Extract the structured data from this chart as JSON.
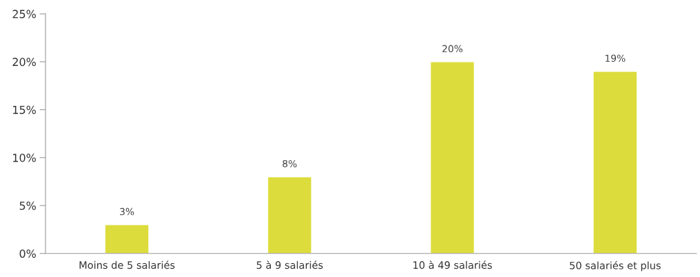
{
  "chart_data": {
    "type": "bar",
    "categories": [
      "Moins de 5 salariés",
      "5 à 9 salariés",
      "10 à 49 salariés",
      "50 salariés et plus"
    ],
    "values": [
      3,
      8,
      20,
      19
    ],
    "color": "#dcdc3c",
    "value_labels": [
      "3%",
      "8%",
      "20%",
      "19%"
    ],
    "ylim": [
      0,
      25
    ],
    "yticks": [
      {
        "value": 0,
        "label": "0%"
      },
      {
        "value": 5,
        "label": "5%"
      },
      {
        "value": 10,
        "label": "10%"
      },
      {
        "value": 15,
        "label": "15%"
      },
      {
        "value": 20,
        "label": "20%"
      },
      {
        "value": 25,
        "label": "25%"
      }
    ],
    "grid": false,
    "legend": false
  }
}
